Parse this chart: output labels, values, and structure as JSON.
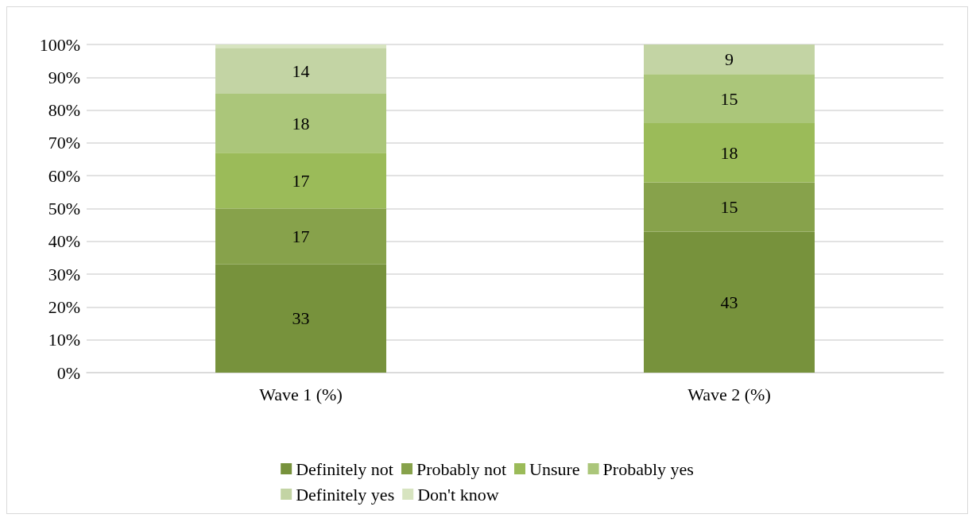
{
  "chart_data": {
    "type": "bar",
    "stacked": true,
    "categories": [
      "Wave 1 (%)",
      "Wave 2 (%)"
    ],
    "series": [
      {
        "name": "Definitely not",
        "color": "#77923c",
        "values": [
          33,
          43
        ],
        "value_labels": [
          "33",
          "43"
        ]
      },
      {
        "name": "Probably not",
        "color": "#87a24b",
        "values": [
          17,
          15
        ],
        "value_labels": [
          "17",
          "15"
        ]
      },
      {
        "name": "Unsure",
        "color": "#9bbb59",
        "values": [
          17,
          18
        ],
        "value_labels": [
          "17",
          "18"
        ]
      },
      {
        "name": "Probably yes",
        "color": "#abc67a",
        "values": [
          18,
          15
        ],
        "value_labels": [
          "18",
          "15"
        ]
      },
      {
        "name": "Definitely yes",
        "color": "#c3d4a4",
        "values": [
          14,
          9
        ],
        "value_labels": [
          "14",
          "9"
        ]
      },
      {
        "name": "Don't know",
        "color": "#d7e4c0",
        "values": [
          1,
          0
        ],
        "value_labels": [
          null,
          null
        ]
      }
    ],
    "ylim": [
      0,
      100
    ],
    "yticks": [
      {
        "value": 0,
        "label": "0%"
      },
      {
        "value": 10,
        "label": "10%"
      },
      {
        "value": 20,
        "label": "20%"
      },
      {
        "value": 30,
        "label": "30%"
      },
      {
        "value": 40,
        "label": "40%"
      },
      {
        "value": 50,
        "label": "50%"
      },
      {
        "value": 60,
        "label": "60%"
      },
      {
        "value": 70,
        "label": "70%"
      },
      {
        "value": 80,
        "label": "80%"
      },
      {
        "value": 90,
        "label": "90%"
      },
      {
        "value": 100,
        "label": "100%"
      }
    ],
    "grid": "y",
    "legend": "bottom"
  }
}
